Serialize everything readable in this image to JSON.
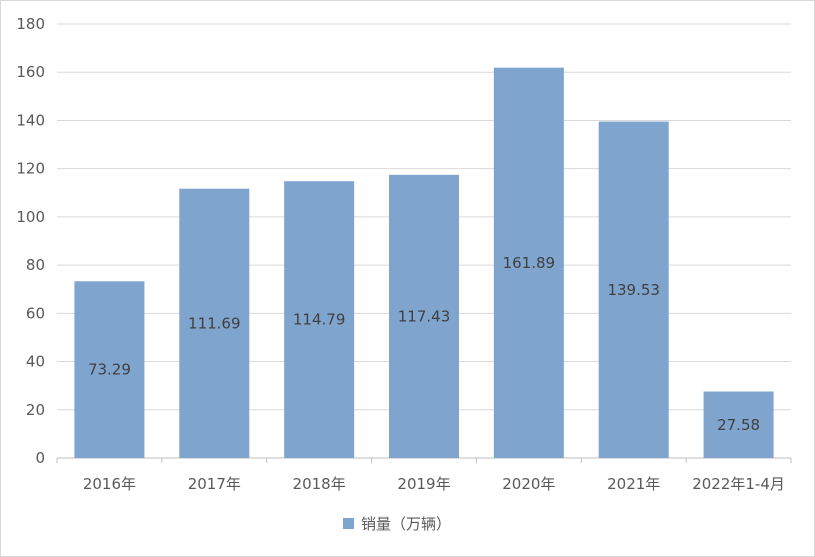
{
  "chart_data": {
    "type": "bar",
    "categories": [
      "2016年",
      "2017年",
      "2018年",
      "2019年",
      "2020年",
      "2021年",
      "2022年1-4月"
    ],
    "series": [
      {
        "name": "销量（万辆）",
        "values": [
          73.29,
          111.69,
          114.79,
          117.43,
          161.89,
          139.53,
          27.58
        ],
        "color": "#7fa4ce"
      }
    ],
    "data_labels": [
      "73.29",
      "111.69",
      "114.79",
      "117.43",
      "161.89",
      "139.53",
      "27.58"
    ],
    "ylim": [
      0,
      180
    ],
    "yticks": [
      0,
      20,
      40,
      60,
      80,
      100,
      120,
      140,
      160,
      180
    ],
    "grid": true,
    "legend_position": "bottom"
  }
}
